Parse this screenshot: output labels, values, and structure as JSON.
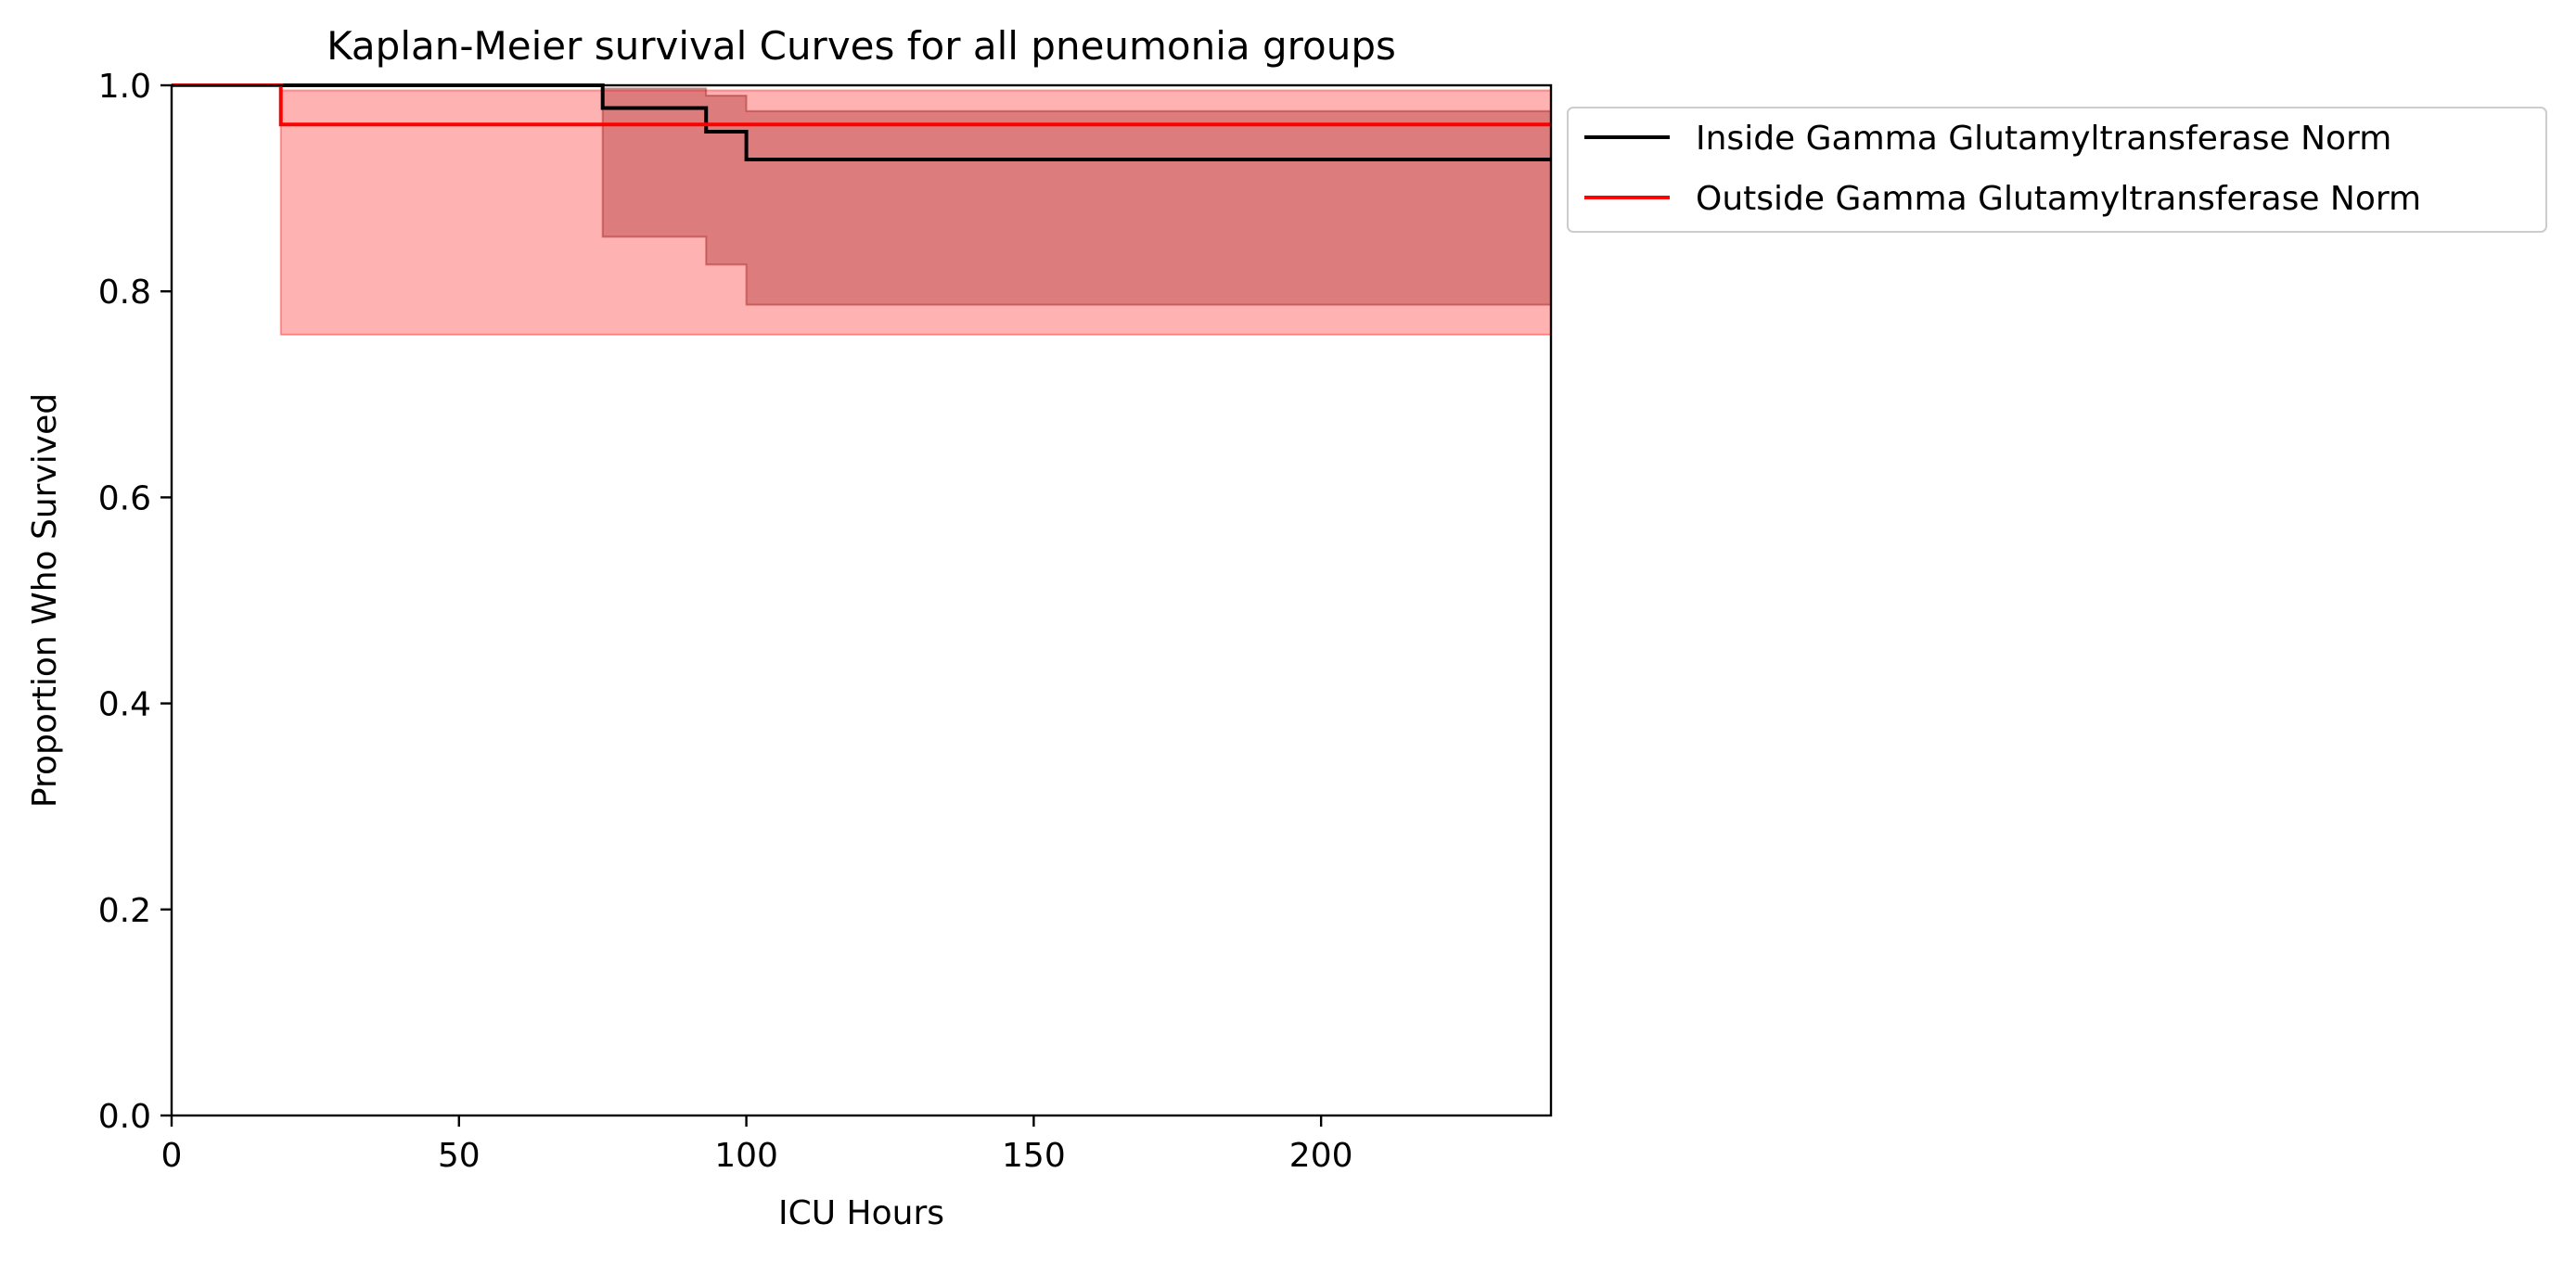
{
  "chart_data": {
    "type": "line",
    "title": "Kaplan-Meier survival Curves for all pneumonia groups",
    "xlabel": "ICU Hours",
    "ylabel": "Proportion Who Survived",
    "xlim": [
      0,
      240
    ],
    "ylim": [
      0,
      1.0
    ],
    "xticks": [
      0,
      50,
      100,
      150,
      200
    ],
    "yticks": [
      0.0,
      0.2,
      0.4,
      0.6,
      0.8,
      1.0
    ],
    "xtick_labels": [
      "0",
      "50",
      "100",
      "150",
      "200"
    ],
    "ytick_labels": [
      "0.0",
      "0.2",
      "0.4",
      "0.6",
      "0.8",
      "1.0"
    ],
    "grid": false,
    "legend_position": "outside right, top",
    "series": [
      {
        "name": "Inside Gamma Glutamyltransferase Norm",
        "color": "#000000",
        "band_color": "#8b0000",
        "step_x": [
          0,
          75,
          93,
          100,
          240
        ],
        "survival": [
          1.0,
          0.978,
          0.955,
          0.928,
          0.928
        ],
        "ci_lower": [
          1.0,
          0.853,
          0.826,
          0.787,
          0.787
        ],
        "ci_upper": [
          1.0,
          0.997,
          0.99,
          0.975,
          0.975
        ]
      },
      {
        "name": "Outside Gamma Glutamyltransferase Norm",
        "color": "#ff0000",
        "band_color": "#ff0000",
        "step_x": [
          0,
          19,
          240
        ],
        "survival": [
          1.0,
          0.962,
          0.962
        ],
        "ci_lower": [
          1.0,
          0.758,
          0.758
        ],
        "ci_upper": [
          1.0,
          0.995,
          0.995
        ]
      }
    ]
  }
}
